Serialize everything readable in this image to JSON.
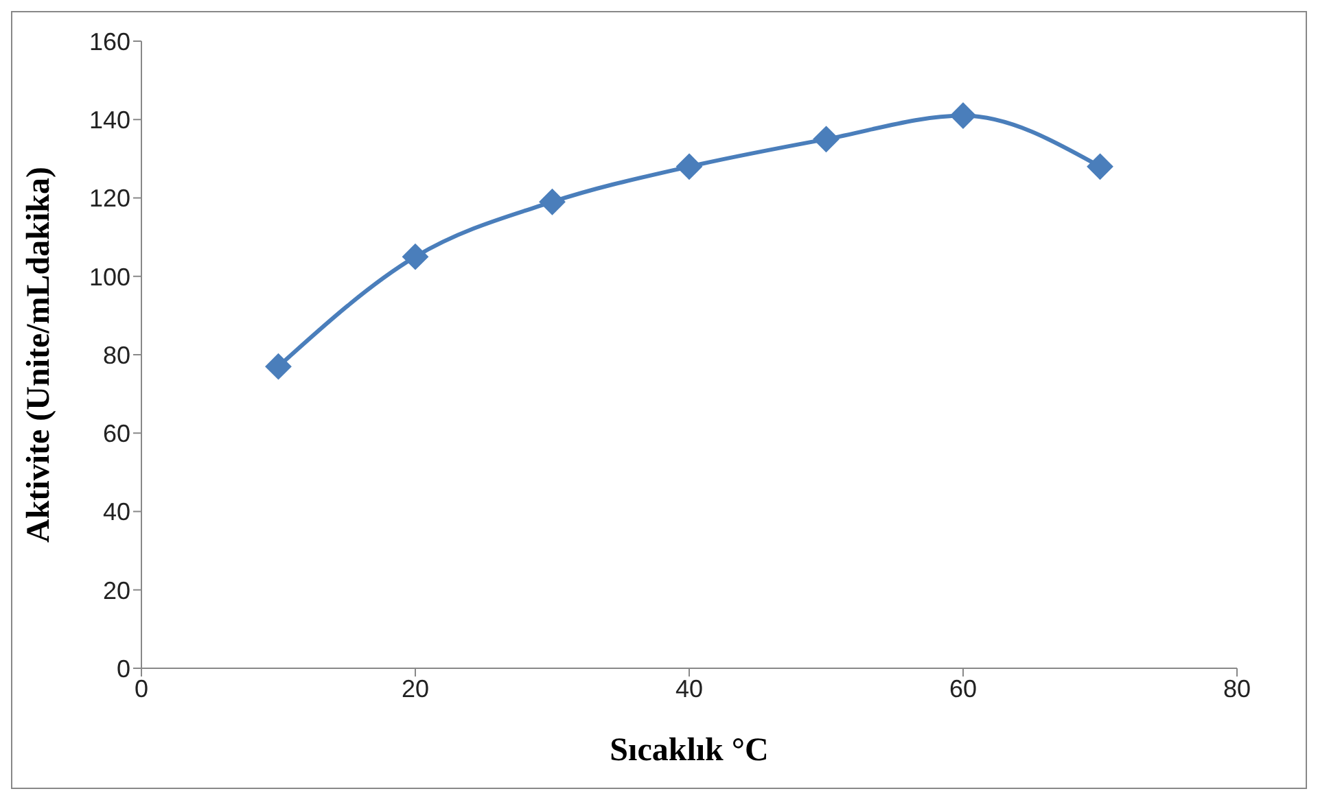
{
  "chart_data": {
    "type": "line",
    "xlabel": "Sıcaklık °C",
    "ylabel": "Aktivite (Unite/mLdakika)",
    "x": [
      10,
      20,
      30,
      40,
      50,
      60,
      70
    ],
    "series": [
      {
        "color": "#4a7ebb",
        "values": [
          77,
          105,
          119,
          128,
          135,
          141,
          128
        ]
      }
    ],
    "xlim": [
      0,
      80
    ],
    "xticks": [
      0,
      20,
      40,
      60,
      80
    ],
    "ylim": [
      0,
      160
    ],
    "yticks": [
      0,
      20,
      40,
      60,
      80,
      100,
      120,
      140,
      160
    ],
    "grid": false,
    "legend": false,
    "marker": "diamond",
    "line_style": "solid"
  }
}
